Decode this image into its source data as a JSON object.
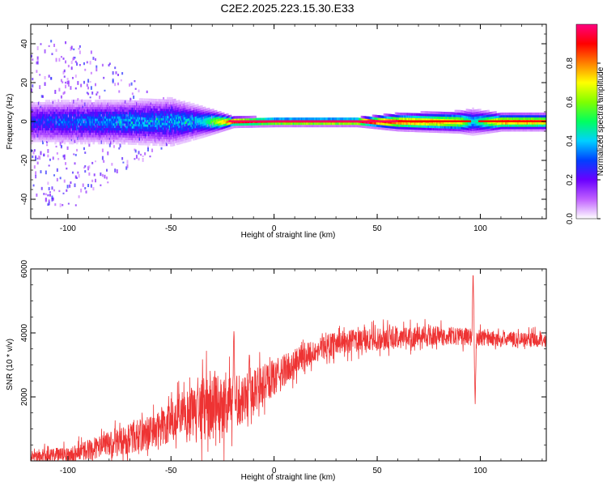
{
  "title": "C2E2.2025.223.15.30.E33",
  "chart_data": [
    {
      "type": "heatmap",
      "title": "",
      "xlabel": "Height of straight line (km)",
      "ylabel": "Frequency (Hz)",
      "xlim": [
        -118,
        132
      ],
      "ylim": [
        -50,
        50
      ],
      "xticks": [
        -100,
        -50,
        0,
        50,
        100
      ],
      "yticks": [
        -40,
        -20,
        0,
        20,
        40
      ],
      "colorbar": {
        "label": "Normalized spectral amplitude",
        "range": [
          0,
          1
        ],
        "ticks": [
          0.0,
          0.2,
          0.4,
          0.6,
          0.8
        ],
        "colormap": "rainbow",
        "colors": [
          "#ffffff",
          "#c060ff",
          "#6a00ff",
          "#0040ff",
          "#00d0ff",
          "#00ff60",
          "#80ff00",
          "#ffff00",
          "#ff8000",
          "#ff0000",
          "#ff0080"
        ]
      },
      "profile": [
        {
          "x": -118,
          "peak": 0.25,
          "width": 5.0,
          "spread": 40
        },
        {
          "x": -100,
          "peak": 0.3,
          "width": 5.0,
          "spread": 45
        },
        {
          "x": -75,
          "peak": 0.35,
          "width": 5.0,
          "spread": 28
        },
        {
          "x": -50,
          "peak": 0.35,
          "width": 5.5,
          "spread": 10
        },
        {
          "x": -35,
          "peak": 0.4,
          "width": 3.5,
          "spread": 4
        },
        {
          "x": -20,
          "peak": 0.9,
          "width": 1.2,
          "spread": 1
        },
        {
          "x": 0,
          "peak": 0.95,
          "width": 1.0,
          "spread": 0
        },
        {
          "x": 40,
          "peak": 1.0,
          "width": 1.0,
          "spread": 0
        },
        {
          "x": 60,
          "peak": 0.85,
          "width": 2.0,
          "spread": 0
        },
        {
          "x": 90,
          "peak": 0.7,
          "width": 2.5,
          "spread": 0
        },
        {
          "x": 96,
          "peak": 0.4,
          "width": 3.0,
          "spread": 0
        },
        {
          "x": 110,
          "peak": 0.8,
          "width": 2.0,
          "spread": 0
        },
        {
          "x": 132,
          "peak": 0.75,
          "width": 2.0,
          "spread": 0
        }
      ]
    },
    {
      "type": "line",
      "title": "",
      "xlabel": "Height of straight line (km)",
      "ylabel": "SNR (10 * v/v)",
      "xlim": [
        -118,
        132
      ],
      "ylim": [
        0,
        6000
      ],
      "xticks": [
        -100,
        -50,
        0,
        50,
        100
      ],
      "yticks": [
        2000,
        4000,
        6000
      ],
      "color": "#ee3333",
      "trend": [
        {
          "x": -118,
          "y": 150,
          "noise": 250
        },
        {
          "x": -100,
          "y": 200,
          "noise": 300
        },
        {
          "x": -80,
          "y": 500,
          "noise": 500
        },
        {
          "x": -60,
          "y": 900,
          "noise": 700
        },
        {
          "x": -45,
          "y": 1300,
          "noise": 900
        },
        {
          "x": -35,
          "y": 1600,
          "noise": 1300
        },
        {
          "x": -25,
          "y": 1700,
          "noise": 1300
        },
        {
          "x": -15,
          "y": 2000,
          "noise": 1000
        },
        {
          "x": 0,
          "y": 2600,
          "noise": 700
        },
        {
          "x": 15,
          "y": 3300,
          "noise": 500
        },
        {
          "x": 30,
          "y": 3700,
          "noise": 450
        },
        {
          "x": 50,
          "y": 3800,
          "noise": 450
        },
        {
          "x": 70,
          "y": 3900,
          "noise": 400
        },
        {
          "x": 90,
          "y": 3900,
          "noise": 350
        },
        {
          "x": 110,
          "y": 3800,
          "noise": 300
        },
        {
          "x": 132,
          "y": 3800,
          "noise": 300
        }
      ],
      "spikes": [
        {
          "x": -19.5,
          "y": 4100
        },
        {
          "x": -37,
          "y": 2600
        },
        {
          "x": -12,
          "y": 3400
        },
        {
          "x": 96.5,
          "y": 6000
        },
        {
          "x": 97.5,
          "y": 1700
        }
      ]
    }
  ]
}
